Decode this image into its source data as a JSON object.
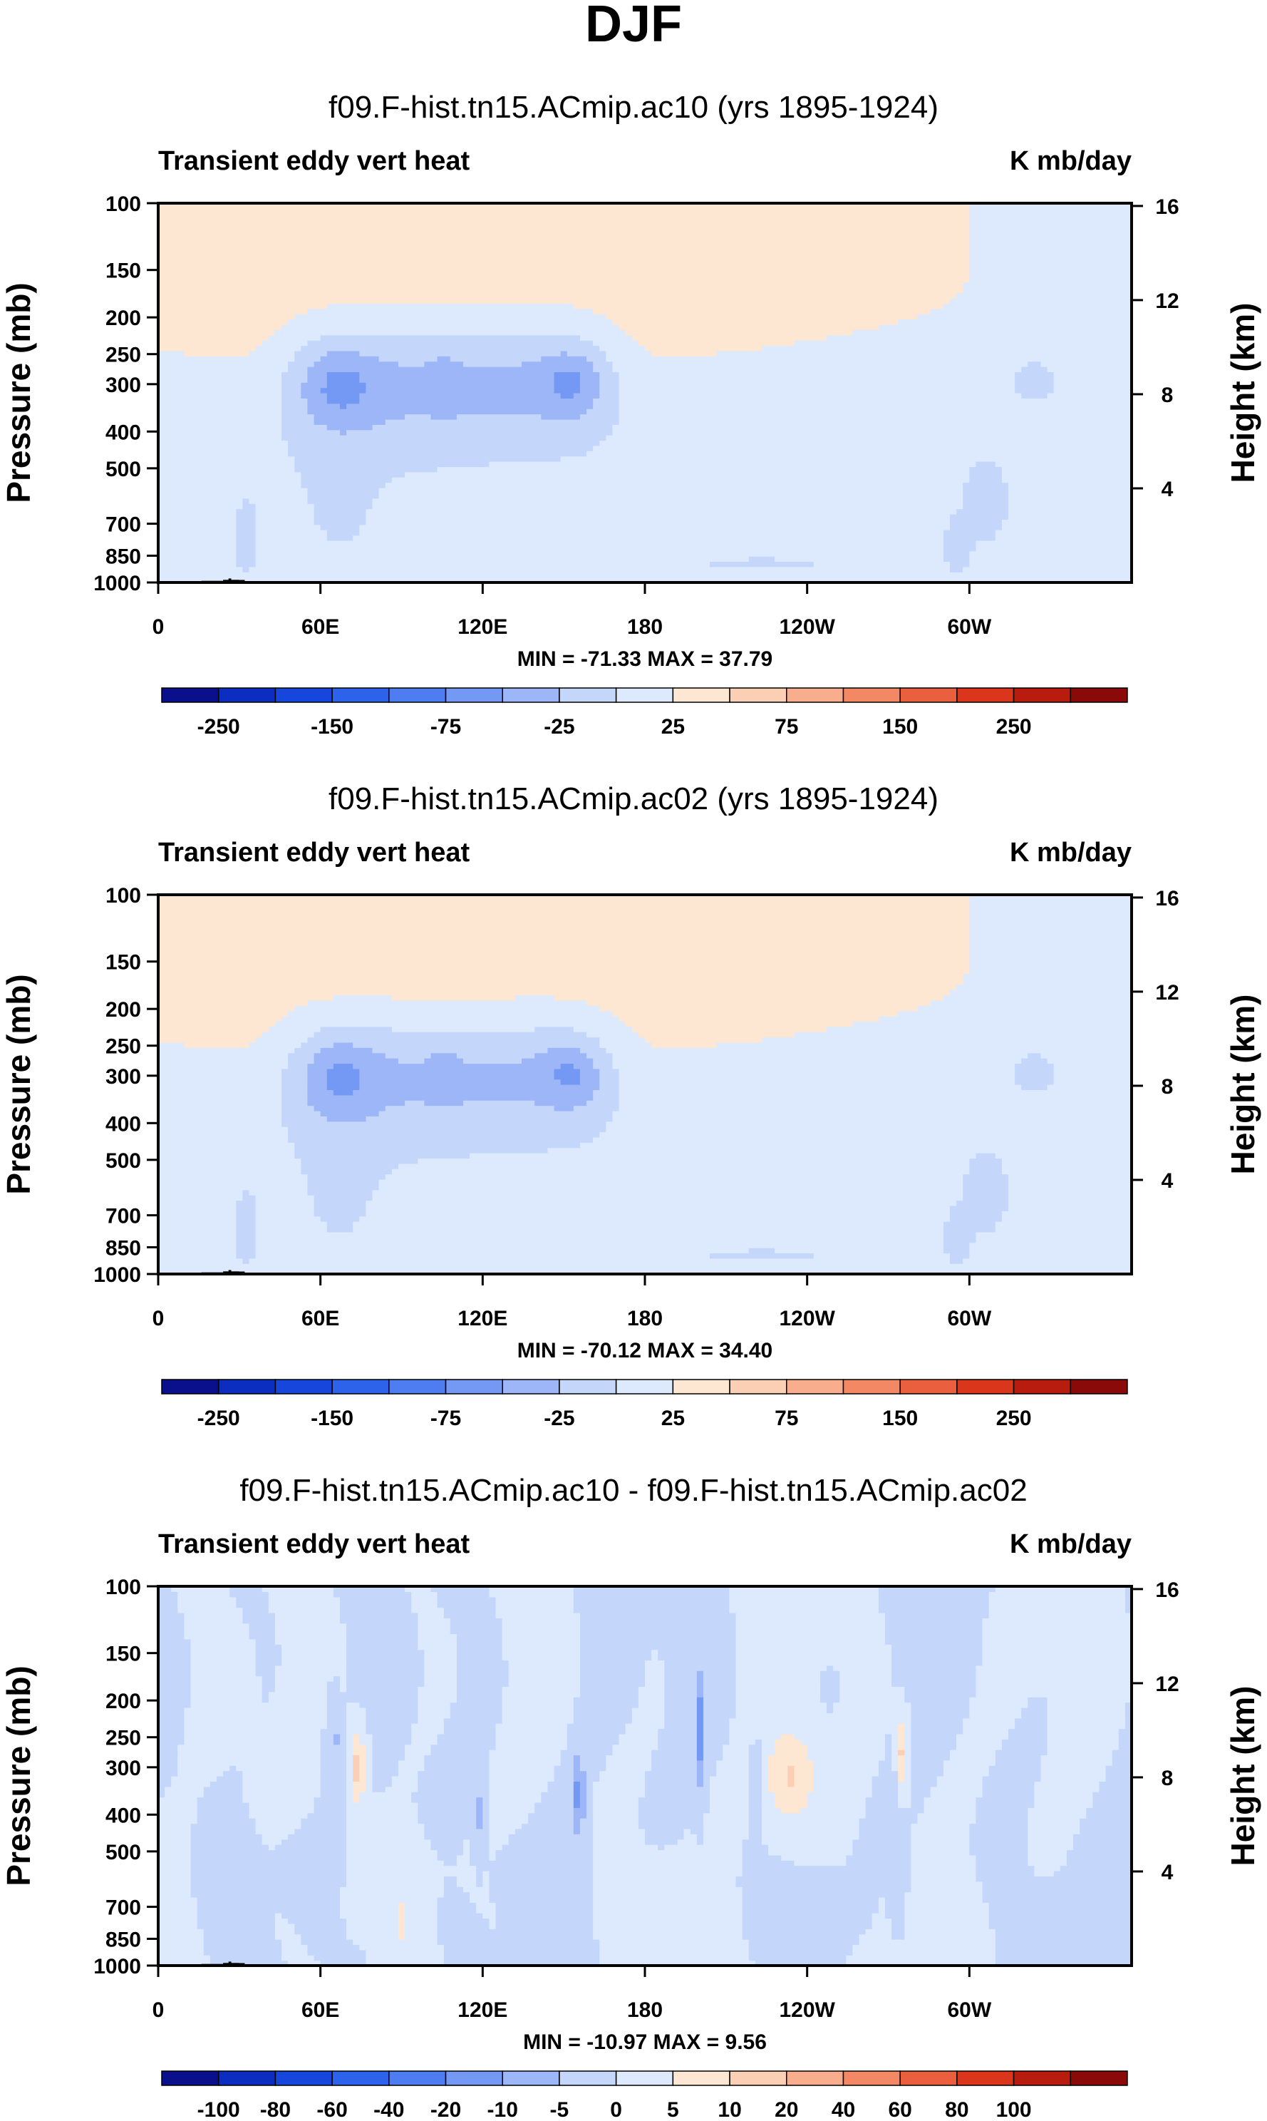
{
  "figure": {
    "title": "DJF"
  },
  "palette": {
    "c1": [
      "#0a0f8c",
      "#0b2ec0",
      "#1646dc",
      "#2d62ea",
      "#4d7df0",
      "#7499f4",
      "#9db6f7",
      "#c5d6fb",
      "#ddeafd",
      "#fde6d2",
      "#fbcfb4",
      "#f8ae8c",
      "#f38864",
      "#ea5f3d",
      "#d9361c",
      "#b81c0e",
      "#8a0a0a"
    ],
    "c2": [
      "#0a0f8c",
      "#0b2ec0",
      "#1646dc",
      "#2d62ea",
      "#4d7df0",
      "#7499f4",
      "#9db6f7",
      "#c5d6fb",
      "#ddeafd",
      "#fde6d2",
      "#fbcfb4",
      "#f8ae8c",
      "#f38864",
      "#ea5f3d",
      "#d9361c",
      "#b81c0e",
      "#8a0a0a"
    ]
  },
  "colorbars": {
    "abs": {
      "labels": [
        "-250",
        "-150",
        "-75",
        "-25",
        "25",
        "75",
        "150",
        "250"
      ]
    },
    "diff": {
      "labels": [
        "-100",
        "-80",
        "-60",
        "-40",
        "-20",
        "-10",
        "-5",
        "0",
        "5",
        "10",
        "20",
        "40",
        "60",
        "80",
        "100"
      ]
    }
  },
  "chart_data": [
    {
      "type": "heatmap",
      "title": "f09.F-hist.tn15.ACmip.ac10 (yrs 1895-1924)",
      "left_label": "Transient eddy vert heat",
      "right_label": "K mb/day",
      "ylabel": "Pressure (mb)",
      "ylabel_right": "Height (km)",
      "xticks": [
        "0",
        "60E",
        "120E",
        "180",
        "120W",
        "60W"
      ],
      "xtick_lon": [
        0,
        60,
        120,
        180,
        240,
        300
      ],
      "yticks": [
        "100",
        "150",
        "200",
        "250",
        "300",
        "400",
        "500",
        "700",
        "850",
        "1000"
      ],
      "ytick_p": [
        100,
        150,
        200,
        250,
        300,
        400,
        500,
        700,
        850,
        1000
      ],
      "yticks_right": [
        "16",
        "12",
        "8",
        "4"
      ],
      "ytick_km": [
        16,
        12,
        8,
        4
      ],
      "ylim": [
        1000,
        100
      ],
      "xlim": [
        0,
        360
      ],
      "stats": "MIN = -71.33  MAX =  37.79",
      "min": -71.33,
      "max": 37.79,
      "contour_levels": [
        -300,
        -250,
        -200,
        -150,
        -100,
        -75,
        -50,
        -25,
        0,
        25,
        50,
        75,
        100,
        150,
        200,
        250,
        300
      ]
    },
    {
      "type": "heatmap",
      "title": "f09.F-hist.tn15.ACmip.ac02 (yrs 1895-1924)",
      "left_label": "Transient eddy vert heat",
      "right_label": "K mb/day",
      "ylabel": "Pressure (mb)",
      "ylabel_right": "Height (km)",
      "xticks": [
        "0",
        "60E",
        "120E",
        "180",
        "120W",
        "60W"
      ],
      "xtick_lon": [
        0,
        60,
        120,
        180,
        240,
        300
      ],
      "yticks": [
        "100",
        "150",
        "200",
        "250",
        "300",
        "400",
        "500",
        "700",
        "850",
        "1000"
      ],
      "ytick_p": [
        100,
        150,
        200,
        250,
        300,
        400,
        500,
        700,
        850,
        1000
      ],
      "yticks_right": [
        "16",
        "12",
        "8",
        "4"
      ],
      "ytick_km": [
        16,
        12,
        8,
        4
      ],
      "ylim": [
        1000,
        100
      ],
      "xlim": [
        0,
        360
      ],
      "stats": "MIN = -70.12  MAX =  34.40",
      "min": -70.12,
      "max": 34.4,
      "contour_levels": [
        -300,
        -250,
        -200,
        -150,
        -100,
        -75,
        -50,
        -25,
        0,
        25,
        50,
        75,
        100,
        150,
        200,
        250,
        300
      ]
    },
    {
      "type": "heatmap",
      "title": "f09.F-hist.tn15.ACmip.ac10 - f09.F-hist.tn15.ACmip.ac02",
      "left_label": "Transient eddy vert heat",
      "right_label": "K mb/day",
      "ylabel": "Pressure (mb)",
      "ylabel_right": "Height (km)",
      "xticks": [
        "0",
        "60E",
        "120E",
        "180",
        "120W",
        "60W"
      ],
      "xtick_lon": [
        0,
        60,
        120,
        180,
        240,
        300
      ],
      "yticks": [
        "100",
        "150",
        "200",
        "250",
        "300",
        "400",
        "500",
        "700",
        "850",
        "1000"
      ],
      "ytick_p": [
        100,
        150,
        200,
        250,
        300,
        400,
        500,
        700,
        850,
        1000
      ],
      "yticks_right": [
        "16",
        "12",
        "8",
        "4"
      ],
      "ytick_km": [
        16,
        12,
        8,
        4
      ],
      "ylim": [
        1000,
        100
      ],
      "xlim": [
        0,
        360
      ],
      "stats": "MIN = -10.97  MAX =   9.56",
      "min": -10.97,
      "max": 9.56,
      "contour_levels": [
        -120,
        -100,
        -80,
        -60,
        -40,
        -20,
        -10,
        -5,
        0,
        5,
        10,
        20,
        40,
        60,
        80,
        100,
        120
      ]
    }
  ]
}
